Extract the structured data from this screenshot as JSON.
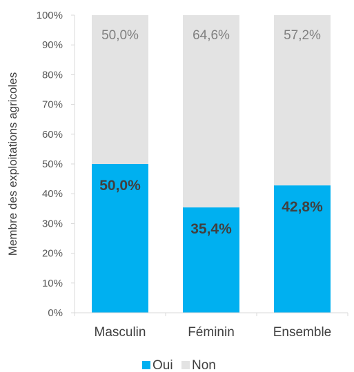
{
  "chart_data": {
    "type": "bar",
    "stacked": true,
    "categories": [
      "Masculin",
      "Féminin",
      "Ensemble"
    ],
    "series": [
      {
        "name": "Oui",
        "values": [
          50.0,
          35.4,
          42.8
        ],
        "labels": [
          "50,0%",
          "35,4%",
          "42,8%"
        ],
        "color": "#00b0f0"
      },
      {
        "name": "Non",
        "values": [
          50.0,
          64.6,
          57.2
        ],
        "labels": [
          "50,0%",
          "64,6%",
          "57,2%"
        ],
        "color": "#e3e3e3"
      }
    ],
    "ylabel": "Membre des exploitations agricoles",
    "ylim": [
      0,
      100
    ],
    "yticks": [
      "0%",
      "10%",
      "20%",
      "30%",
      "40%",
      "50%",
      "60%",
      "70%",
      "80%",
      "90%",
      "100%"
    ],
    "legend": "bottom",
    "grid": false
  }
}
